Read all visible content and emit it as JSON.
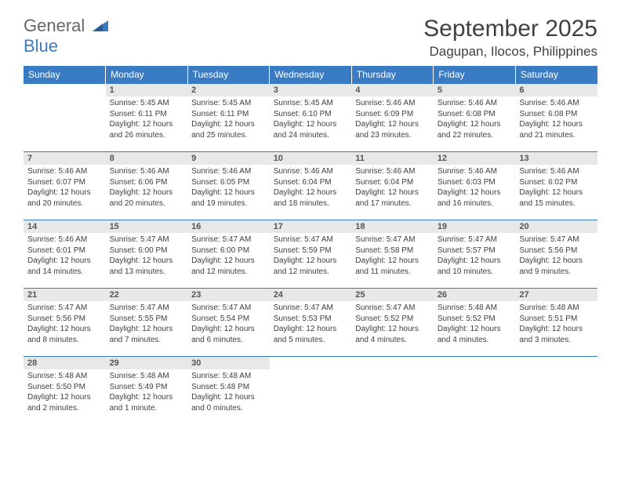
{
  "logo": {
    "line1": "General",
    "line2": "Blue"
  },
  "title": "September 2025",
  "location": "Dagupan, Ilocos, Philippines",
  "weekdays": [
    "Sunday",
    "Monday",
    "Tuesday",
    "Wednesday",
    "Thursday",
    "Friday",
    "Saturday"
  ],
  "colors": {
    "header_bg": "#3a7cc4",
    "header_text": "#ffffff",
    "daynum_bg": "#e8e8e8",
    "border": "#3a7cc4",
    "text": "#404040"
  },
  "start_weekday": 1,
  "days": [
    {
      "n": 1,
      "sunrise": "5:45 AM",
      "sunset": "6:11 PM",
      "daylight": "12 hours and 26 minutes."
    },
    {
      "n": 2,
      "sunrise": "5:45 AM",
      "sunset": "6:11 PM",
      "daylight": "12 hours and 25 minutes."
    },
    {
      "n": 3,
      "sunrise": "5:45 AM",
      "sunset": "6:10 PM",
      "daylight": "12 hours and 24 minutes."
    },
    {
      "n": 4,
      "sunrise": "5:46 AM",
      "sunset": "6:09 PM",
      "daylight": "12 hours and 23 minutes."
    },
    {
      "n": 5,
      "sunrise": "5:46 AM",
      "sunset": "6:08 PM",
      "daylight": "12 hours and 22 minutes."
    },
    {
      "n": 6,
      "sunrise": "5:46 AM",
      "sunset": "6:08 PM",
      "daylight": "12 hours and 21 minutes."
    },
    {
      "n": 7,
      "sunrise": "5:46 AM",
      "sunset": "6:07 PM",
      "daylight": "12 hours and 20 minutes."
    },
    {
      "n": 8,
      "sunrise": "5:46 AM",
      "sunset": "6:06 PM",
      "daylight": "12 hours and 20 minutes."
    },
    {
      "n": 9,
      "sunrise": "5:46 AM",
      "sunset": "6:05 PM",
      "daylight": "12 hours and 19 minutes."
    },
    {
      "n": 10,
      "sunrise": "5:46 AM",
      "sunset": "6:04 PM",
      "daylight": "12 hours and 18 minutes."
    },
    {
      "n": 11,
      "sunrise": "5:46 AM",
      "sunset": "6:04 PM",
      "daylight": "12 hours and 17 minutes."
    },
    {
      "n": 12,
      "sunrise": "5:46 AM",
      "sunset": "6:03 PM",
      "daylight": "12 hours and 16 minutes."
    },
    {
      "n": 13,
      "sunrise": "5:46 AM",
      "sunset": "6:02 PM",
      "daylight": "12 hours and 15 minutes."
    },
    {
      "n": 14,
      "sunrise": "5:46 AM",
      "sunset": "6:01 PM",
      "daylight": "12 hours and 14 minutes."
    },
    {
      "n": 15,
      "sunrise": "5:47 AM",
      "sunset": "6:00 PM",
      "daylight": "12 hours and 13 minutes."
    },
    {
      "n": 16,
      "sunrise": "5:47 AM",
      "sunset": "6:00 PM",
      "daylight": "12 hours and 12 minutes."
    },
    {
      "n": 17,
      "sunrise": "5:47 AM",
      "sunset": "5:59 PM",
      "daylight": "12 hours and 12 minutes."
    },
    {
      "n": 18,
      "sunrise": "5:47 AM",
      "sunset": "5:58 PM",
      "daylight": "12 hours and 11 minutes."
    },
    {
      "n": 19,
      "sunrise": "5:47 AM",
      "sunset": "5:57 PM",
      "daylight": "12 hours and 10 minutes."
    },
    {
      "n": 20,
      "sunrise": "5:47 AM",
      "sunset": "5:56 PM",
      "daylight": "12 hours and 9 minutes."
    },
    {
      "n": 21,
      "sunrise": "5:47 AM",
      "sunset": "5:56 PM",
      "daylight": "12 hours and 8 minutes."
    },
    {
      "n": 22,
      "sunrise": "5:47 AM",
      "sunset": "5:55 PM",
      "daylight": "12 hours and 7 minutes."
    },
    {
      "n": 23,
      "sunrise": "5:47 AM",
      "sunset": "5:54 PM",
      "daylight": "12 hours and 6 minutes."
    },
    {
      "n": 24,
      "sunrise": "5:47 AM",
      "sunset": "5:53 PM",
      "daylight": "12 hours and 5 minutes."
    },
    {
      "n": 25,
      "sunrise": "5:47 AM",
      "sunset": "5:52 PM",
      "daylight": "12 hours and 4 minutes."
    },
    {
      "n": 26,
      "sunrise": "5:48 AM",
      "sunset": "5:52 PM",
      "daylight": "12 hours and 4 minutes."
    },
    {
      "n": 27,
      "sunrise": "5:48 AM",
      "sunset": "5:51 PM",
      "daylight": "12 hours and 3 minutes."
    },
    {
      "n": 28,
      "sunrise": "5:48 AM",
      "sunset": "5:50 PM",
      "daylight": "12 hours and 2 minutes."
    },
    {
      "n": 29,
      "sunrise": "5:48 AM",
      "sunset": "5:49 PM",
      "daylight": "12 hours and 1 minute."
    },
    {
      "n": 30,
      "sunrise": "5:48 AM",
      "sunset": "5:48 PM",
      "daylight": "12 hours and 0 minutes."
    }
  ],
  "labels": {
    "sunrise": "Sunrise:",
    "sunset": "Sunset:",
    "daylight": "Daylight:"
  }
}
